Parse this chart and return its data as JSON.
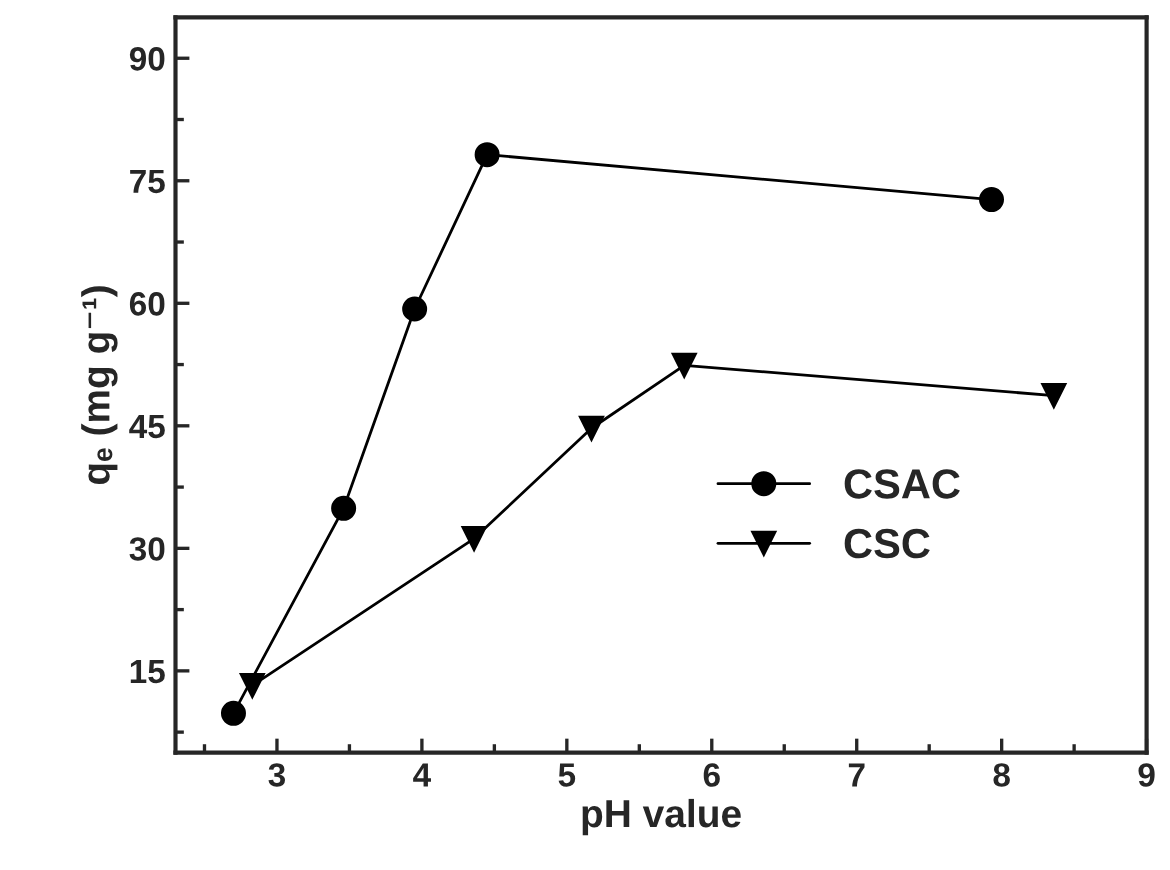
{
  "chart_data": {
    "type": "line",
    "xlabel": "pH value",
    "ylabel": "qₑ (mg g⁻¹)",
    "xlim": [
      2.3,
      9
    ],
    "xticks": [
      3,
      4,
      5,
      6,
      7,
      8,
      9
    ],
    "ylim": [
      5,
      95
    ],
    "yticks": [
      15,
      30,
      45,
      60,
      75,
      90
    ],
    "grid": false,
    "legend": "right",
    "line_style": "solid",
    "series": [
      {
        "name": "CSAC",
        "color": "#000000",
        "marker": "circle",
        "x": [
          2.7,
          3.46,
          3.95,
          4.45,
          7.93
        ],
        "values": [
          9.8,
          34.9,
          59.3,
          78.2,
          72.7
        ]
      },
      {
        "name": "CSC",
        "color": "#000000",
        "marker": "triangle",
        "x": [
          2.83,
          4.36,
          5.17,
          5.81,
          8.36
        ],
        "values": [
          13.2,
          31.2,
          44.7,
          52.4,
          48.7
        ]
      }
    ]
  }
}
